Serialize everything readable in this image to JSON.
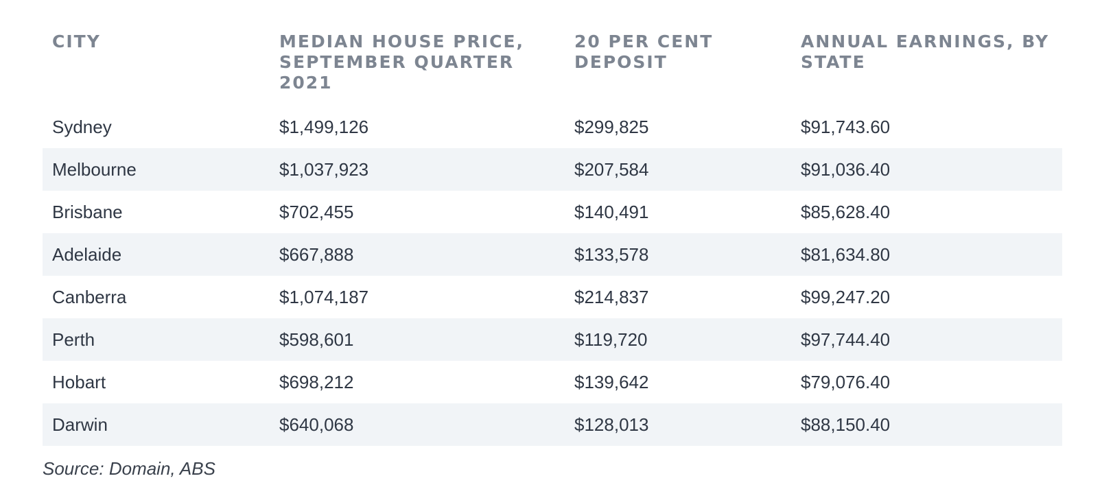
{
  "chart_data": {
    "type": "table",
    "columns": [
      "CITY",
      "MEDIAN HOUSE PRICE, SEPTEMBER QUARTER 2021",
      "20 PER CENT DEPOSIT",
      "ANNUAL EARNINGS, BY STATE"
    ],
    "rows": [
      [
        "Sydney",
        "$1,499,126",
        "$299,825",
        "$91,743.60"
      ],
      [
        "Melbourne",
        "$1,037,923",
        "$207,584",
        "$91,036.40"
      ],
      [
        "Brisbane",
        "$702,455",
        "$140,491",
        "$85,628.40"
      ],
      [
        "Adelaide",
        "$667,888",
        "$133,578",
        "$81,634.80"
      ],
      [
        "Canberra",
        "$1,074,187",
        "$214,837",
        "$99,247.20"
      ],
      [
        "Perth",
        "$598,601",
        "$119,720",
        "$97,744.40"
      ],
      [
        "Hobart",
        "$698,212",
        "$139,642",
        "$79,076.40"
      ],
      [
        "Darwin",
        "$640,068",
        "$128,013",
        "$88,150.40"
      ]
    ],
    "source": "Source: Domain, ABS"
  },
  "colors": {
    "header_text": "#7d8591",
    "body_text": "#2f3744",
    "stripe": "#f1f4f7"
  }
}
